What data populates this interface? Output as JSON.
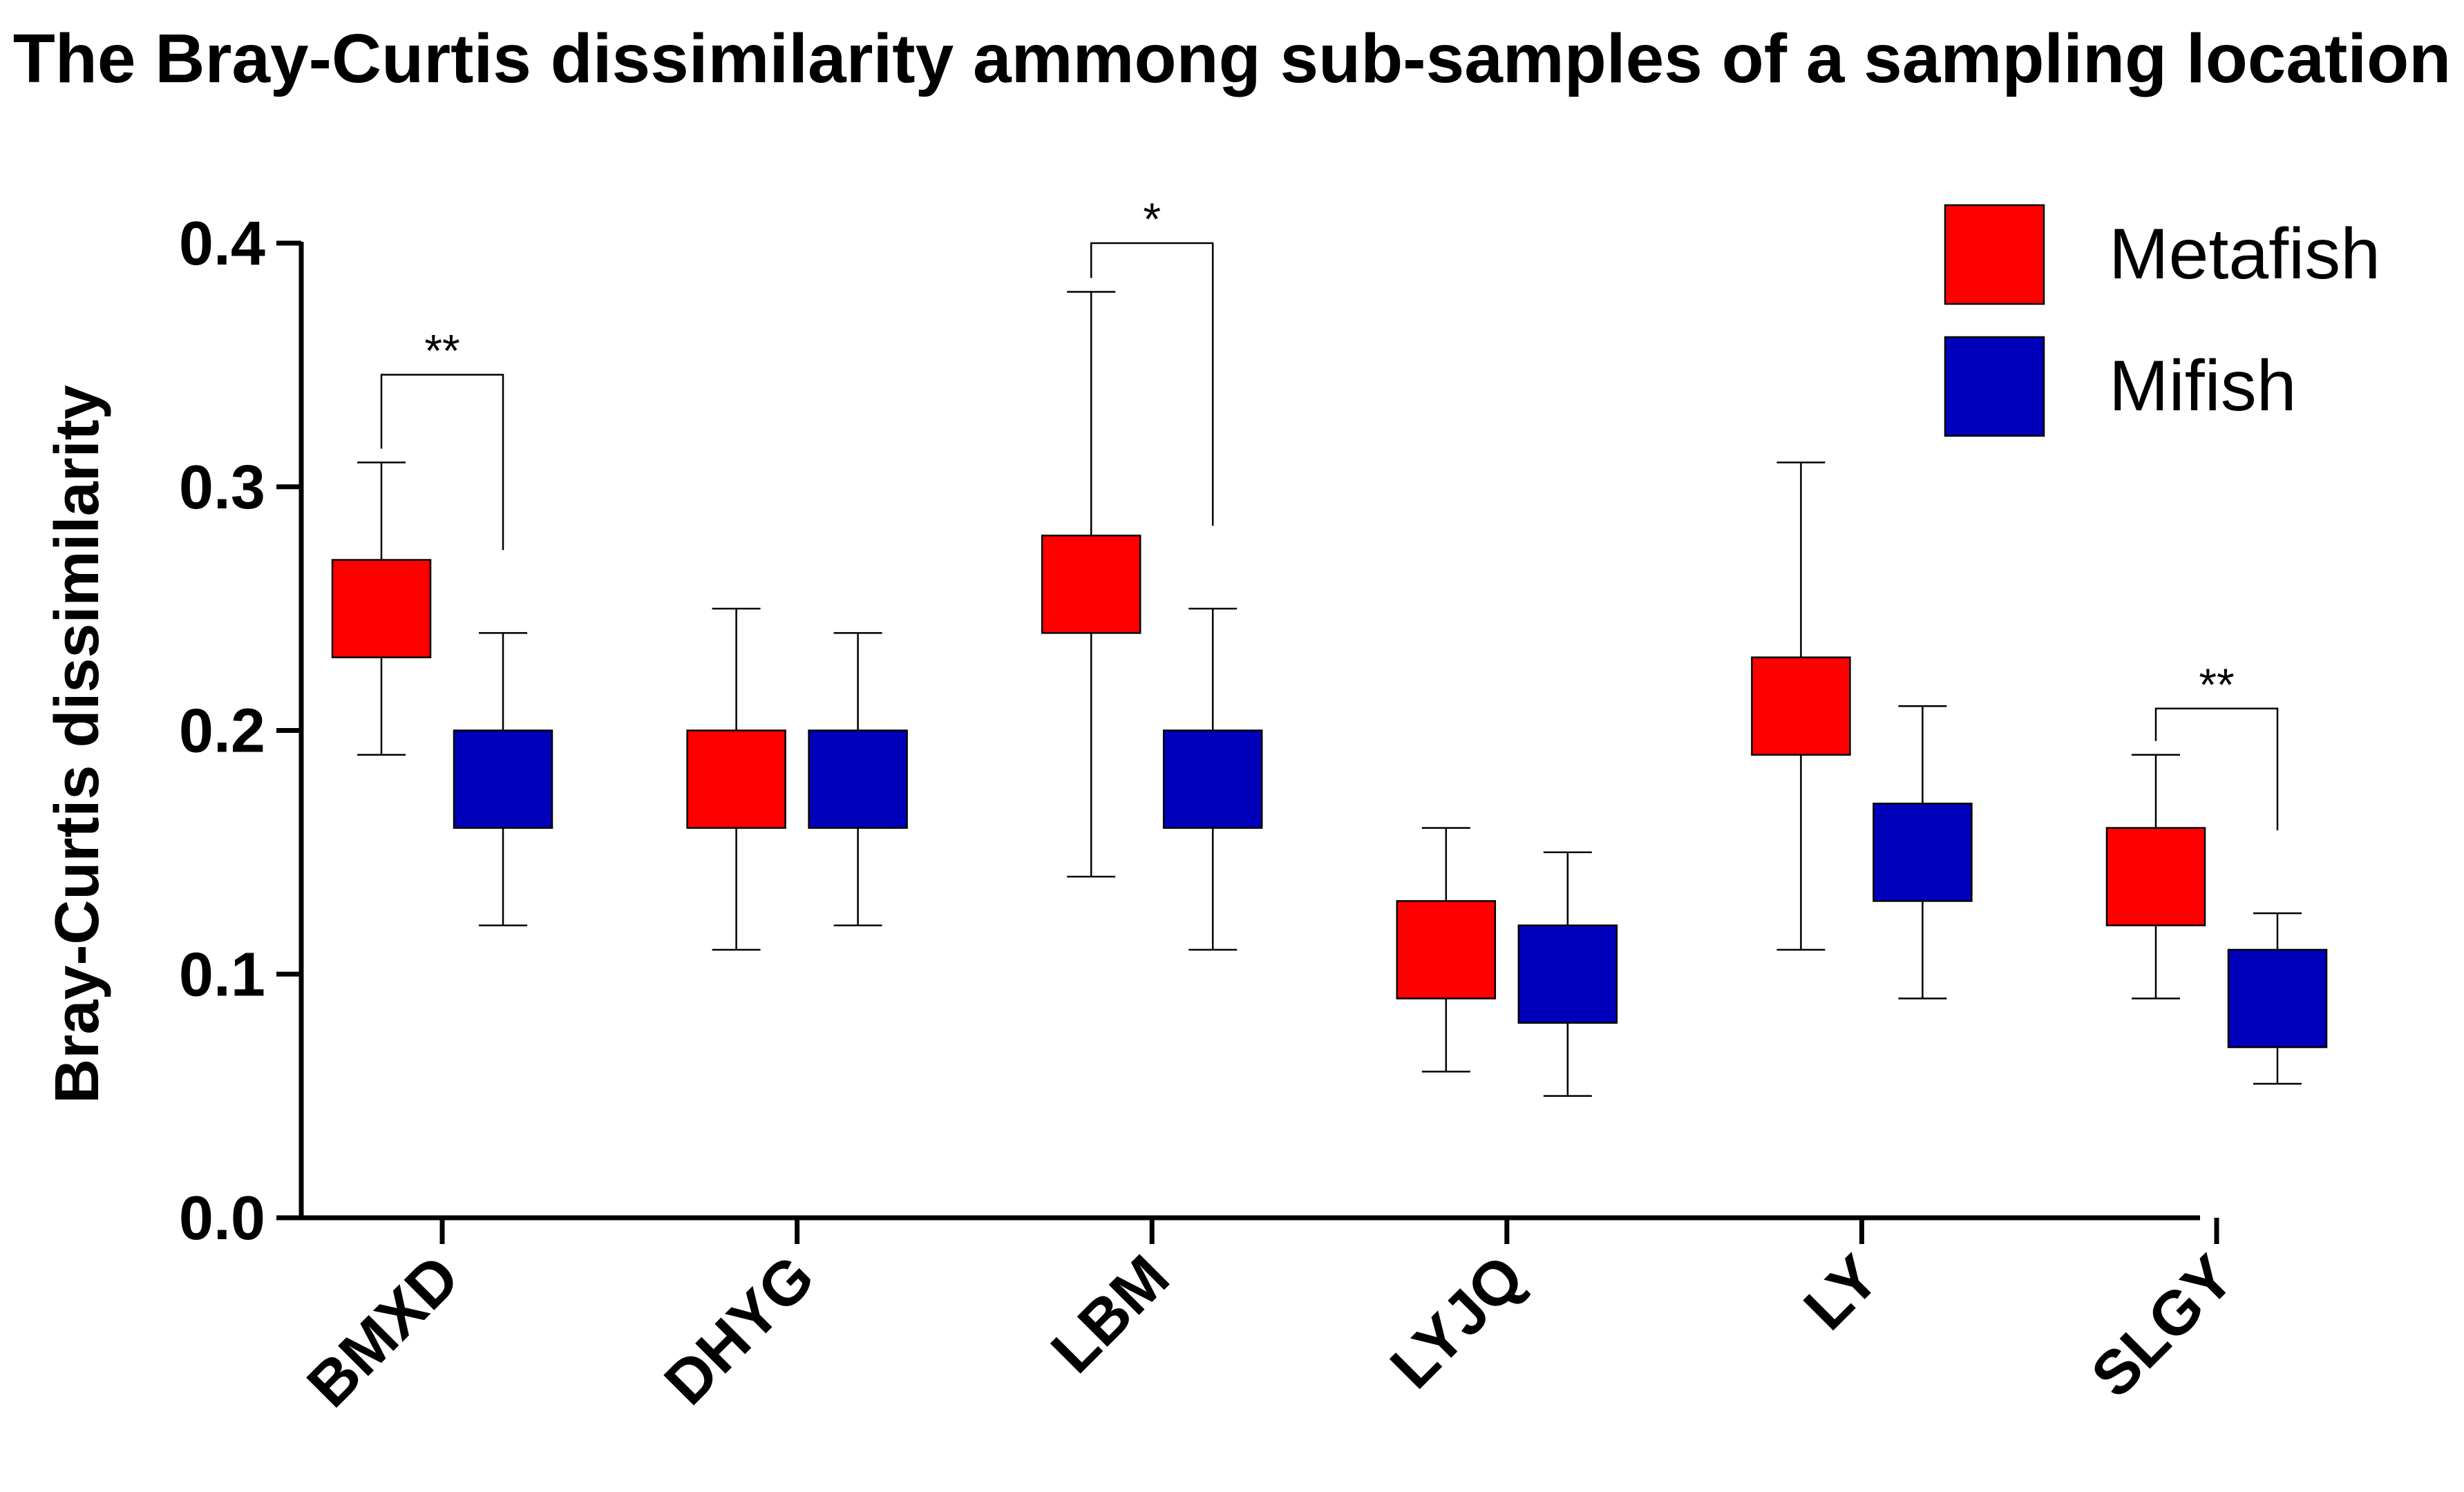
{
  "chart_data": {
    "type": "box",
    "title": "The Bray-Curtis dissimilarity ammong sub-samples of a sampling location",
    "xlabel": "",
    "ylabel": "Bray-Curtis dissimilarity",
    "ylim": [
      0,
      0.4
    ],
    "yticks": [
      "0.0",
      "0.1",
      "0.2",
      "0.3",
      "0.4"
    ],
    "categories": [
      "BMXD",
      "DHYG",
      "LBM",
      "LYJQ",
      "LY",
      "SLGY"
    ],
    "series": [
      {
        "name": "Metafish",
        "color": "#ff0000",
        "boxes": [
          {
            "min": 0.19,
            "q1": 0.23,
            "q3": 0.27,
            "max": 0.31
          },
          {
            "min": 0.11,
            "q1": 0.16,
            "q3": 0.2,
            "max": 0.25
          },
          {
            "min": 0.14,
            "q1": 0.24,
            "q3": 0.28,
            "max": 0.38
          },
          {
            "min": 0.06,
            "q1": 0.09,
            "q3": 0.13,
            "max": 0.16
          },
          {
            "min": 0.11,
            "q1": 0.19,
            "q3": 0.23,
            "max": 0.31
          },
          {
            "min": 0.09,
            "q1": 0.12,
            "q3": 0.16,
            "max": 0.19
          }
        ]
      },
      {
        "name": "Mifish",
        "color": "#0000bb",
        "boxes": [
          {
            "min": 0.12,
            "q1": 0.16,
            "q3": 0.2,
            "max": 0.24
          },
          {
            "min": 0.12,
            "q1": 0.16,
            "q3": 0.2,
            "max": 0.24
          },
          {
            "min": 0.11,
            "q1": 0.16,
            "q3": 0.2,
            "max": 0.25
          },
          {
            "min": 0.05,
            "q1": 0.08,
            "q3": 0.12,
            "max": 0.15
          },
          {
            "min": 0.09,
            "q1": 0.13,
            "q3": 0.17,
            "max": 0.21
          },
          {
            "min": 0.055,
            "q1": 0.07,
            "q3": 0.11,
            "max": 0.125
          }
        ]
      }
    ],
    "significance": [
      {
        "category": "BMXD",
        "label": "**",
        "bracket_y": 0.346
      },
      {
        "category": "LBM",
        "label": "*",
        "bracket_y": 0.4
      },
      {
        "category": "SLGY",
        "label": "**",
        "bracket_y": 0.209
      }
    ],
    "legend": {
      "position": "top-right",
      "entries": [
        "Metafish",
        "Mifish"
      ]
    }
  }
}
